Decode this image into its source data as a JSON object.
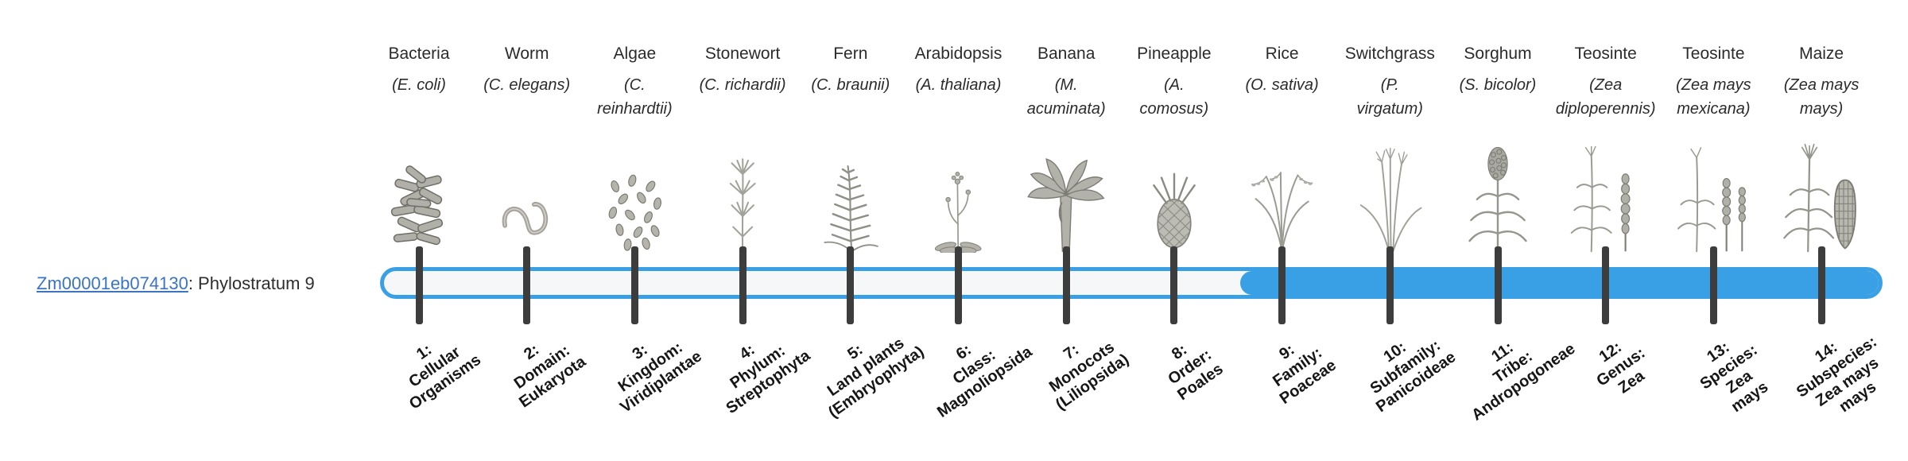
{
  "colors": {
    "track_fill_blue": "#3AA0E5",
    "track_empty": "#F5F7F9",
    "tick": "#3D3D3D",
    "link": "#3B74C4",
    "text": "#2E2E2E",
    "illustration_gray": "#9A9A92"
  },
  "gene": {
    "id": "Zm00001eb074130",
    "suffix": ": Phylostratum 9",
    "phylostratum": 9
  },
  "track": {
    "total_strata": 14,
    "filled_from_stratum": 9
  },
  "organisms": [
    {
      "name": "Bacteria",
      "scientific": "(E. coli)",
      "illustration": "bacteria",
      "stage_label": "1:\nCellular\nOrganisms"
    },
    {
      "name": "Worm",
      "scientific": "(C. elegans)",
      "illustration": "worm",
      "stage_label": "2:\nDomain:\nEukaryota"
    },
    {
      "name": "Algae",
      "scientific": "(C.\nreinhardtii)",
      "illustration": "algae",
      "stage_label": "3:\nKingdom:\nViridiplantae"
    },
    {
      "name": "Stonewort",
      "scientific": "(C. richardii)",
      "illustration": "stonewort",
      "stage_label": "4:\nPhylum:\nStreptophyta"
    },
    {
      "name": "Fern",
      "scientific": "(C. braunii)",
      "illustration": "fern",
      "stage_label": "5:\nLand plants\n(Embryophyta)"
    },
    {
      "name": "Arabidopsis",
      "scientific": "(A. thaliana)",
      "illustration": "arabidopsis",
      "stage_label": "6:\nClass:\nMagnoliopsida"
    },
    {
      "name": "Banana",
      "scientific": "(M.\nacuminata)",
      "illustration": "banana",
      "stage_label": "7:\nMonocots\n(Liliopsida)"
    },
    {
      "name": "Pineapple",
      "scientific": "(A.\ncomosus)",
      "illustration": "pineapple",
      "stage_label": "8:\nOrder:\nPoales"
    },
    {
      "name": "Rice",
      "scientific": "(O. sativa)",
      "illustration": "rice",
      "stage_label": "9:\nFamily:\nPoaceae"
    },
    {
      "name": "Switchgrass",
      "scientific": "(P.\nvirgatum)",
      "illustration": "switchgrass",
      "stage_label": "10:\nSubfamily:\nPanicoideae"
    },
    {
      "name": "Sorghum",
      "scientific": "(S. bicolor)",
      "illustration": "sorghum",
      "stage_label": "11:\nTribe:\nAndropogoneae"
    },
    {
      "name": "Teosinte",
      "scientific": "(Zea\ndiploperennis)",
      "illustration": "teosinte-diploperennis",
      "stage_label": "12:\nGenus:\nZea"
    },
    {
      "name": "Teosinte",
      "scientific": "(Zea mays\nmexicana)",
      "illustration": "teosinte-mexicana",
      "stage_label": "13:\nSpecies:\nZea\nmays"
    },
    {
      "name": "Maize",
      "scientific": "(Zea mays\nmays)",
      "illustration": "maize",
      "stage_label": "14:\nSubspecies:\nZea mays\nmays"
    }
  ]
}
